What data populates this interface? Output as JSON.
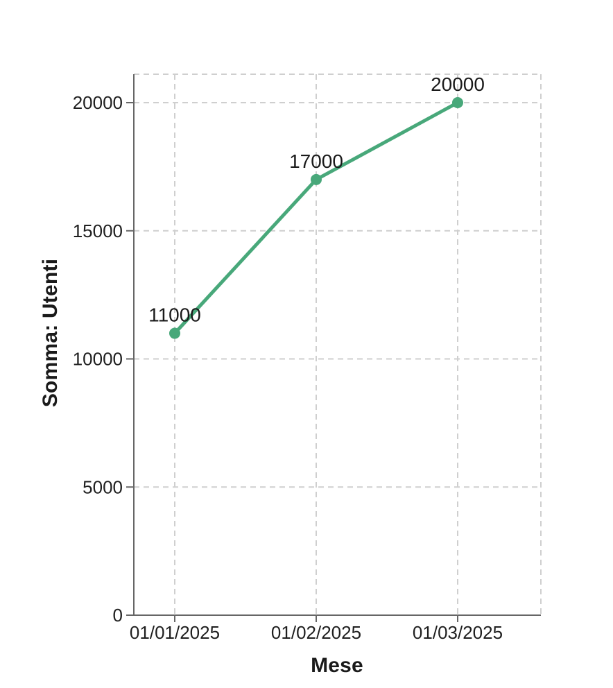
{
  "chart_data": {
    "type": "line",
    "xlabel": "Mese",
    "ylabel": "Somma: Utenti",
    "categories": [
      "01/01/2025",
      "01/02/2025",
      "01/03/2025"
    ],
    "values": [
      11000,
      17000,
      20000
    ],
    "data_labels": [
      "11000",
      "17000",
      "20000"
    ],
    "y_ticks": [
      0,
      5000,
      10000,
      15000,
      20000
    ],
    "y_tick_labels": [
      "0",
      "5000",
      "10000",
      "15000",
      "20000"
    ],
    "ylim": [
      0,
      20000
    ],
    "grid": "dashed",
    "legend": "none",
    "colors": {
      "line": "#48a87a",
      "point": "#48a87a",
      "grid": "#cfcfcf",
      "axis": "#666666",
      "text": "#1a1a1a",
      "background": "#ffffff"
    }
  }
}
